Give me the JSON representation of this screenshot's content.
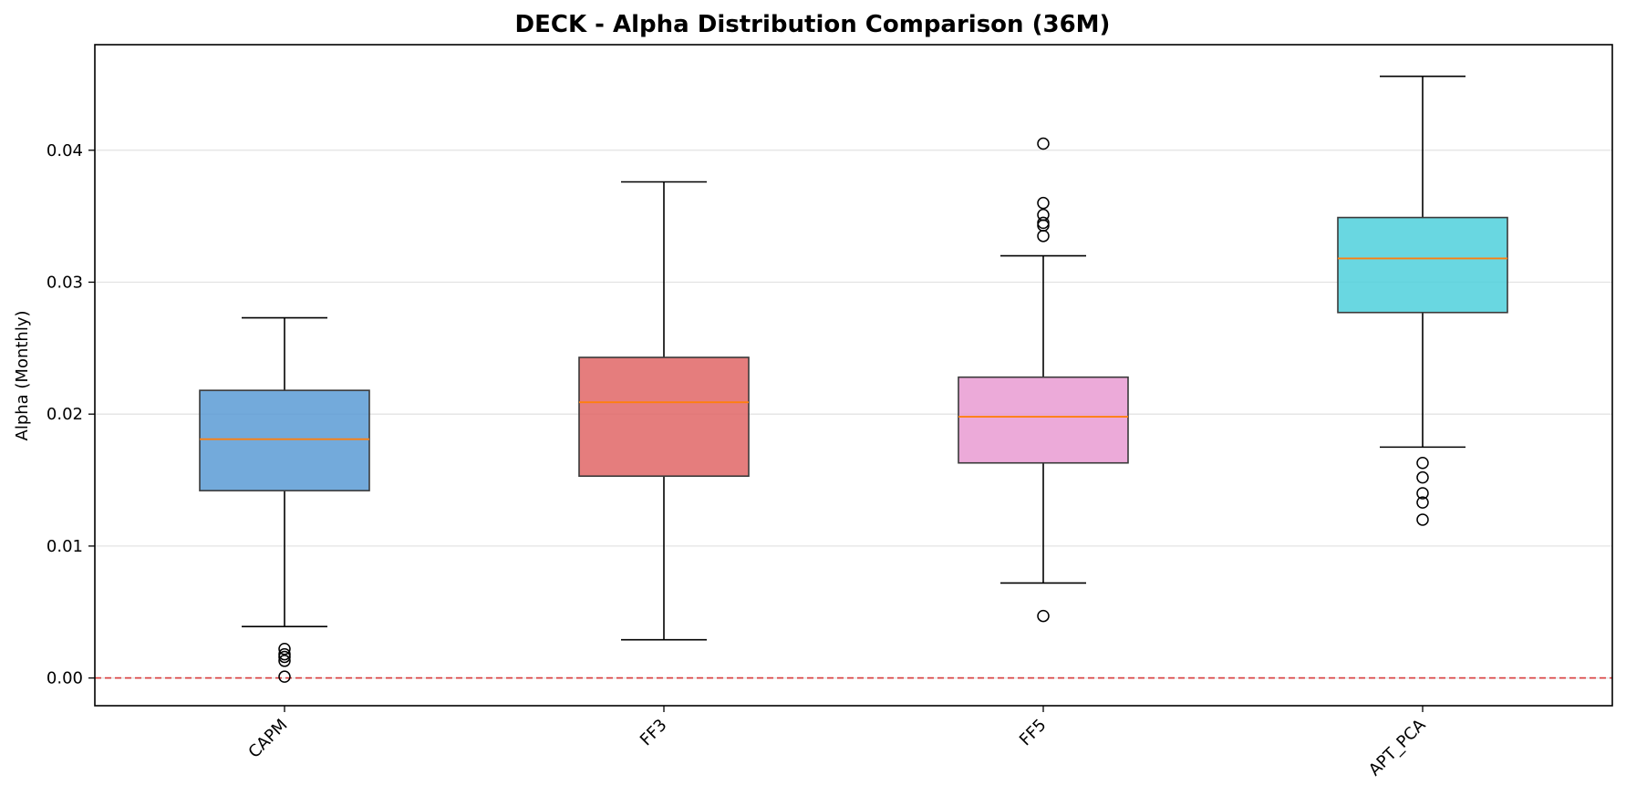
{
  "chart_data": {
    "type": "box",
    "title": "DECK - Alpha Distribution Comparison (36M)",
    "xlabel": "",
    "ylabel": "Alpha (Monthly)",
    "ylim": [
      -0.0021,
      0.048
    ],
    "yticks": [
      0.0,
      0.01,
      0.02,
      0.03,
      0.04
    ],
    "ytick_labels": [
      "0.00",
      "0.01",
      "0.02",
      "0.03",
      "0.04"
    ],
    "grid": "horizontal",
    "reference_line": {
      "y": 0.0,
      "color": "#d62728",
      "style": "dashed"
    },
    "categories": [
      "CAPM",
      "FF3",
      "FF5",
      "APT_PCA"
    ],
    "boxes": [
      {
        "label": "CAPM",
        "color": "#5b9bd5",
        "whisker_low": 0.0039,
        "q1": 0.0142,
        "median": 0.0181,
        "q3": 0.0218,
        "whisker_high": 0.0273,
        "outliers": [
          0.0001,
          0.0013,
          0.0016,
          0.0018,
          0.0022
        ]
      },
      {
        "label": "FF3",
        "color": "#e06666",
        "whisker_low": 0.0029,
        "q1": 0.0153,
        "median": 0.0209,
        "q3": 0.0243,
        "whisker_high": 0.0376,
        "outliers": []
      },
      {
        "label": "FF5",
        "color": "#e99bd2",
        "whisker_low": 0.0072,
        "q1": 0.0163,
        "median": 0.0198,
        "q3": 0.0228,
        "whisker_high": 0.032,
        "outliers": [
          0.0047,
          0.0335,
          0.0343,
          0.0345,
          0.0351,
          0.036,
          0.0405
        ]
      },
      {
        "label": "APT_PCA",
        "color": "#4fd0dc",
        "whisker_low": 0.0175,
        "q1": 0.0277,
        "median": 0.0318,
        "q3": 0.0349,
        "whisker_high": 0.0456,
        "outliers": [
          0.012,
          0.0133,
          0.014,
          0.0152,
          0.0163
        ]
      }
    ],
    "median_color": "#ff7f0e"
  }
}
